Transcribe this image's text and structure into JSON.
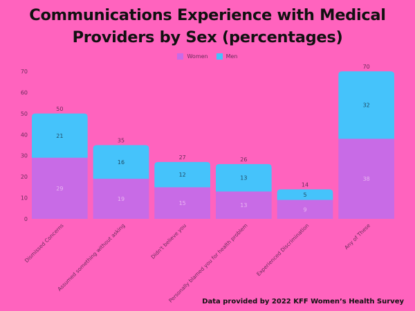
{
  "chart_data": {
    "type": "bar",
    "stacked": true,
    "title": "Communications Experience with Medical Providers by Sex (percentages)",
    "title_lines": [
      "Communications Experience with Medical",
      "Providers by Sex (percentages)"
    ],
    "xlabel": "",
    "ylabel": "",
    "ylim": [
      0,
      70
    ],
    "yticks": [
      0,
      10,
      20,
      30,
      40,
      50,
      60,
      70
    ],
    "grid": false,
    "legend_position": "top-center",
    "categories": [
      "Dismissed Concerns",
      "Assumed something without asking",
      "Didn't believe you",
      "Personally blamed you for health problem",
      "Experienced Discrimination",
      "Any of These"
    ],
    "series": [
      {
        "name": "Women",
        "color": "#c86be6",
        "values": [
          29,
          19,
          15,
          13,
          9,
          38
        ]
      },
      {
        "name": "Men",
        "color": "#45c3fb",
        "values": [
          21,
          16,
          12,
          13,
          5,
          32
        ]
      }
    ],
    "totals": [
      50,
      35,
      27,
      26,
      14,
      70
    ]
  },
  "footer": "Data provided by 2022 KFF Women’s Health Survey",
  "colors": {
    "background": "#ff63be",
    "women": "#c86be6",
    "men": "#45c3fb",
    "axis_text": "#6a2a5a"
  }
}
